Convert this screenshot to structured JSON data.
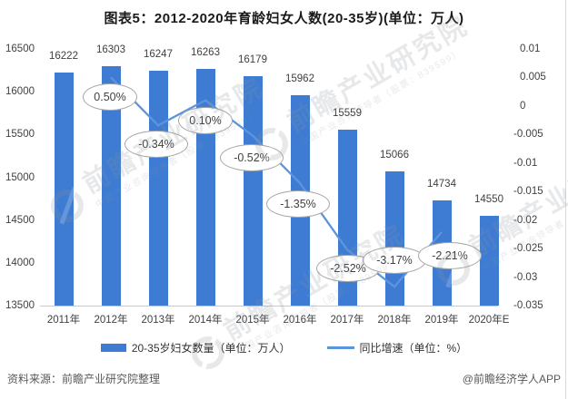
{
  "title": "图表5：2012-2020年育龄妇女人数(20-35岁)(单位：万人)",
  "colors": {
    "bar": "#3e7cd3",
    "line": "#5e94db",
    "axis_line": "#c9c9c9",
    "text": "#404040",
    "callout_border": "#a6a6a6"
  },
  "chart_data": {
    "type": "bar",
    "title": "图表5：2012-2020年育龄妇女人数(20-35岁)(单位：万人)",
    "categories": [
      "2011年",
      "2012年",
      "2013年",
      "2014年",
      "2015年",
      "2016年",
      "2017年",
      "2018年",
      "2019年",
      "2020年E"
    ],
    "series": [
      {
        "name": "20-35岁妇女数量（单位：万人）",
        "type": "bar",
        "axis": "left",
        "values": [
          16222,
          16303,
          16247,
          16263,
          16179,
          15962,
          15559,
          15066,
          14734,
          14550
        ]
      },
      {
        "name": "同比增速（单位：%）",
        "type": "line",
        "axis": "right",
        "values": [
          null,
          0.005,
          -0.0034,
          0.001,
          -0.0052,
          -0.0135,
          -0.0252,
          -0.0317,
          -0.0221,
          null
        ],
        "point_labels": [
          null,
          "0.50%",
          "-0.34%",
          "0.10%",
          "-0.52%",
          "-1.35%",
          "-2.52%",
          "-3.17%",
          "-2.21%",
          null
        ]
      }
    ],
    "left_axis": {
      "min": 13500,
      "max": 16500,
      "step": 500,
      "ticks": [
        16500,
        16000,
        15500,
        15000,
        14500,
        14000,
        13500
      ]
    },
    "right_axis": {
      "min": -0.035,
      "max": 0.01,
      "step": 0.005,
      "ticks": [
        "0.01",
        "0.005",
        "0",
        "-0.005",
        "-0.01",
        "-0.015",
        "-0.02",
        "-0.025",
        "-0.03",
        "-0.035"
      ]
    },
    "grid": false,
    "legend_position": "bottom"
  },
  "legend": [
    {
      "label": "20-35岁妇女数量（单位：万人）",
      "swatch": "bar"
    },
    {
      "label": "同比增速（单位：%）",
      "swatch": "line"
    }
  ],
  "footer": {
    "source": "资料来源：前瞻产业研究院整理",
    "credit": "@前瞻经济学人APP"
  },
  "watermark": {
    "text": "前瞻产业研究院",
    "sub": "中国产业咨询领导者（股票：839599）",
    "logo": "qianzhan-circle-logo"
  }
}
